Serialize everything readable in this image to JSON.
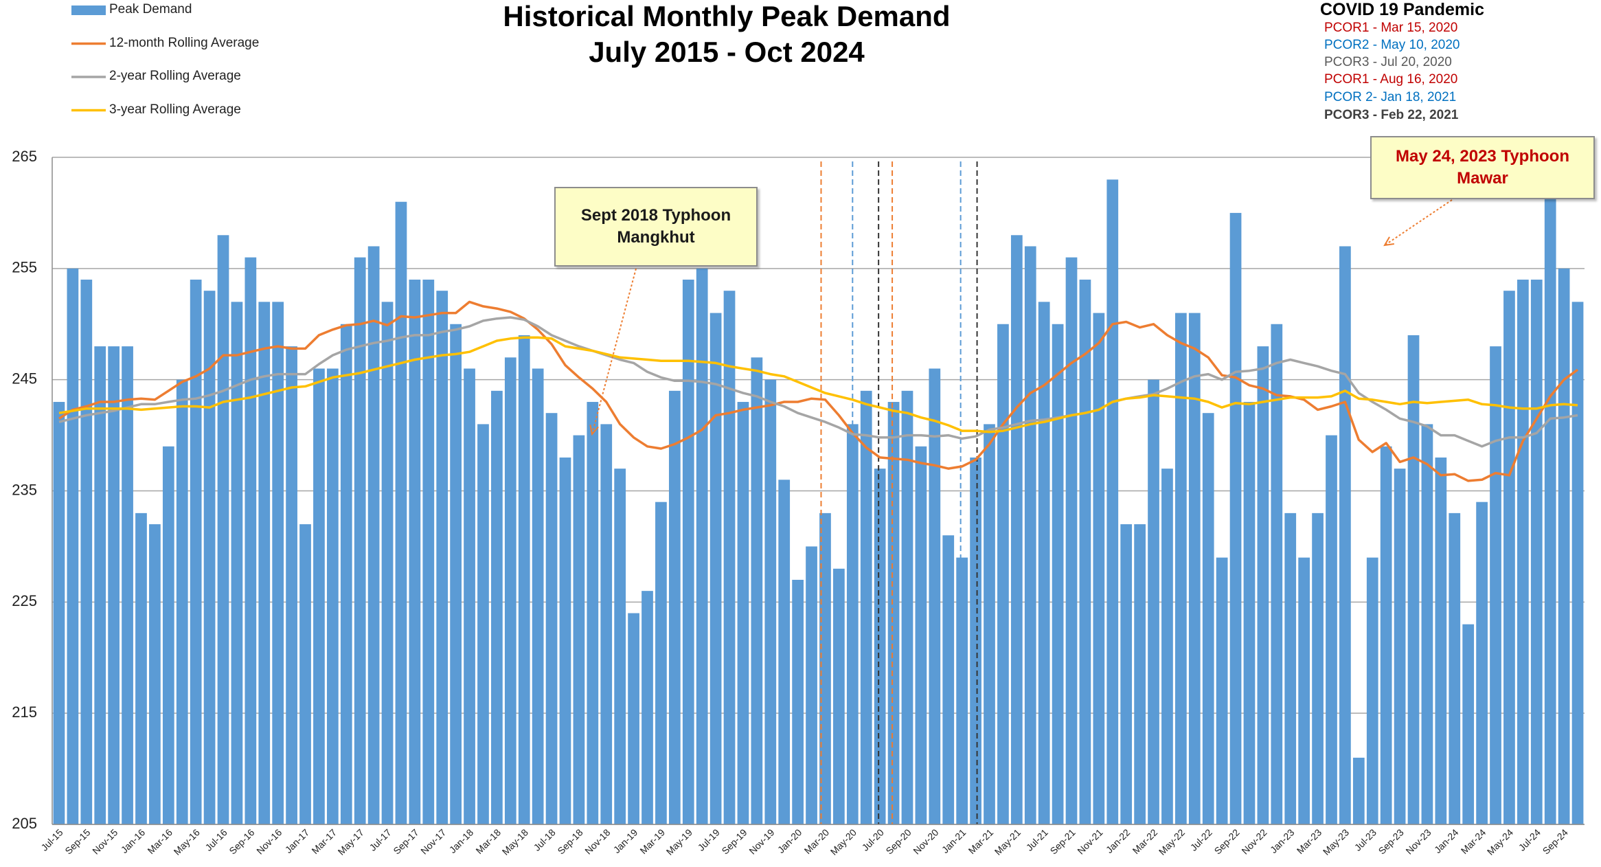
{
  "chart_data": {
    "type": "bar",
    "title": "Historical Monthly Peak Demand",
    "subtitle": "July 2015 - Oct 2024",
    "categories": [
      "Jul-15",
      null,
      "Sep-15",
      null,
      "Nov-15",
      null,
      "Jan-16",
      null,
      "Mar-16",
      null,
      "May-16",
      null,
      "Jul-16",
      null,
      "Sep-16",
      null,
      "Nov-16",
      null,
      "Jan-17",
      null,
      "Mar-17",
      null,
      "May-17",
      null,
      "Jul-17",
      null,
      "Sep-17",
      null,
      "Nov-17",
      null,
      "Jan-18",
      null,
      "Mar-18",
      null,
      "May-18",
      null,
      "Jul-18",
      null,
      "Sep-18",
      null,
      "Nov-18",
      null,
      "Jan-19",
      null,
      "Mar-19",
      null,
      "May-19",
      null,
      "Jul-19",
      null,
      "Sep-19",
      null,
      "Nov-19",
      null,
      "Jan-20",
      null,
      "Mar-20",
      null,
      "May-20",
      null,
      "Jul-20",
      null,
      "Sep-20",
      null,
      "Nov-20",
      null,
      "Jan-21",
      null,
      "Mar-21",
      null,
      "May-21",
      null,
      "Jul-21",
      null,
      "Sep-21",
      null,
      "Nov-21",
      null,
      "Jan-22",
      null,
      "Mar-22",
      null,
      "May-22",
      null,
      "Jul-22",
      null,
      "Sep-22",
      null,
      "Nov-22",
      null,
      "Jan-23",
      null,
      "Mar-23",
      null,
      "May-23",
      null,
      "Jul-23",
      null,
      "Sep-23",
      null,
      "Nov-23",
      null,
      "Jan-24",
      null,
      "Mar-24",
      null,
      "May-24",
      null,
      "Jul-24",
      null,
      "Sep-24",
      null
    ],
    "series": [
      {
        "name": "Peak Demand",
        "type": "bar",
        "color": "#5b9bd5",
        "values": [
          243,
          255,
          254,
          248,
          248,
          248,
          233,
          232,
          239,
          245,
          254,
          253,
          258,
          252,
          256,
          252,
          252,
          248,
          232,
          246,
          246,
          250,
          256,
          257,
          252,
          261,
          254,
          254,
          253,
          250,
          246,
          241,
          244,
          247,
          249,
          246,
          242,
          238,
          240,
          243,
          241,
          237,
          224,
          226,
          234,
          244,
          254,
          255,
          251,
          253,
          243,
          247,
          245,
          236,
          227,
          230,
          233,
          228,
          241,
          244,
          237,
          243,
          244,
          239,
          246,
          231,
          229,
          238,
          241,
          250,
          258,
          257,
          252,
          250,
          256,
          254,
          251,
          263,
          232,
          232,
          245,
          237,
          251,
          251,
          242,
          229,
          260,
          243,
          248,
          250,
          233,
          229,
          233,
          240,
          257,
          211,
          229,
          239,
          237,
          249,
          241,
          238,
          233,
          223,
          234,
          248,
          253,
          254,
          254,
          262,
          255,
          252
        ]
      },
      {
        "name": "12-month Rolling Average",
        "type": "line",
        "color": "#ed7d31",
        "values": [
          241.5,
          242.3,
          242.6,
          243.0,
          243.0,
          243.2,
          243.3,
          243.2,
          244.0,
          244.8,
          245.3,
          246.0,
          247.2,
          247.2,
          247.5,
          247.8,
          248.0,
          247.8,
          247.8,
          249.0,
          249.5,
          249.9,
          250.0,
          250.3,
          249.9,
          250.7,
          250.6,
          250.8,
          251.0,
          251.0,
          252.0,
          251.6,
          251.4,
          251.1,
          250.5,
          249.5,
          248.2,
          246.3,
          245.2,
          244.2,
          243.0,
          241.0,
          239.8,
          239.0,
          238.8,
          239.2,
          239.8,
          240.5,
          241.8,
          242.0,
          242.3,
          242.5,
          242.7,
          243.0,
          243.0,
          243.3,
          243.2,
          241.8,
          240.2,
          238.9,
          238.0,
          237.9,
          237.8,
          237.5,
          237.3,
          237.0,
          237.2,
          237.8,
          239.2,
          241.0,
          242.5,
          243.8,
          244.5,
          245.5,
          246.5,
          247.3,
          248.3,
          250.0,
          250.2,
          249.7,
          250.0,
          249.0,
          248.3,
          247.8,
          247.0,
          245.4,
          245.2,
          244.5,
          244.2,
          243.6,
          243.5,
          243.2,
          242.3,
          242.6,
          243.0,
          239.6,
          238.5,
          239.3,
          237.6,
          238.0,
          237.4,
          236.4,
          236.5,
          235.9,
          236.0,
          236.6,
          236.4,
          239.5,
          241.5,
          243.5,
          245.0,
          245.9
        ]
      },
      {
        "name": "2-year Rolling Average",
        "type": "line",
        "color": "#a5a5a5",
        "values": [
          241.2,
          241.5,
          241.8,
          242.0,
          242.2,
          242.5,
          242.8,
          242.8,
          243.0,
          243.2,
          243.3,
          243.6,
          244.0,
          244.5,
          245.0,
          245.3,
          245.5,
          245.5,
          245.5,
          246.4,
          247.2,
          247.7,
          248.0,
          248.3,
          248.5,
          248.8,
          249.0,
          249.0,
          249.3,
          249.5,
          249.8,
          250.3,
          250.5,
          250.6,
          250.4,
          249.8,
          249.0,
          248.5,
          248.0,
          247.6,
          247.2,
          246.8,
          246.5,
          245.7,
          245.2,
          244.9,
          244.9,
          244.8,
          244.6,
          244.2,
          243.8,
          243.5,
          243.0,
          242.6,
          242.0,
          241.6,
          241.2,
          240.7,
          240.1,
          240.0,
          239.8,
          239.8,
          240.0,
          240.0,
          239.9,
          240.0,
          239.7,
          239.9,
          240.5,
          240.7,
          241.0,
          241.3,
          241.4,
          241.6,
          241.8,
          242.0,
          242.3,
          243.0,
          243.3,
          243.5,
          243.7,
          244.2,
          244.8,
          245.3,
          245.5,
          245.0,
          245.7,
          245.8,
          246.0,
          246.5,
          246.8,
          246.5,
          246.2,
          245.8,
          245.5,
          243.8,
          243.0,
          242.3,
          241.5,
          241.2,
          240.8,
          240.0,
          240.0,
          239.5,
          239.0,
          239.5,
          239.8,
          239.8,
          240.2,
          241.5,
          241.6,
          241.8
        ]
      },
      {
        "name": "3-year Rolling Average",
        "type": "line",
        "color": "#ffc000",
        "values": [
          242.0,
          242.2,
          242.4,
          242.4,
          242.4,
          242.4,
          242.3,
          242.4,
          242.5,
          242.6,
          242.6,
          242.5,
          243.0,
          243.2,
          243.4,
          243.7,
          244.0,
          244.3,
          244.4,
          244.8,
          245.2,
          245.4,
          245.6,
          245.9,
          246.2,
          246.5,
          246.8,
          247.0,
          247.2,
          247.3,
          247.5,
          248.0,
          248.5,
          248.7,
          248.8,
          248.8,
          248.7,
          248.0,
          247.8,
          247.6,
          247.3,
          247.0,
          246.9,
          246.8,
          246.7,
          246.7,
          246.7,
          246.6,
          246.5,
          246.2,
          246.0,
          245.8,
          245.5,
          245.3,
          244.8,
          244.3,
          243.8,
          243.5,
          243.2,
          242.8,
          242.5,
          242.2,
          242.0,
          241.6,
          241.3,
          240.9,
          240.4,
          240.4,
          240.3,
          240.4,
          240.7,
          241.0,
          241.2,
          241.5,
          241.8,
          242.0,
          242.3,
          243.0,
          243.3,
          243.4,
          243.6,
          243.5,
          243.4,
          243.3,
          243.0,
          242.5,
          242.9,
          242.8,
          243.0,
          243.2,
          243.4,
          243.4,
          243.4,
          243.5,
          244.0,
          243.3,
          243.2,
          243.0,
          242.8,
          243.0,
          242.9,
          243.0,
          243.1,
          243.2,
          242.8,
          242.7,
          242.5,
          242.4,
          242.4,
          242.7,
          242.8,
          242.7
        ]
      }
    ],
    "ylim": [
      205,
      265
    ],
    "yticks": [
      205,
      215,
      225,
      235,
      245,
      255,
      265
    ],
    "grid": true,
    "legend": "top-left",
    "annotations": [
      {
        "text": "Sept 2018 Typhoon Mangkhut",
        "color": "#1a1a1a"
      },
      {
        "text": "May 24, 2023 Typhoon Mawar",
        "color": "#c00000"
      }
    ],
    "covid": {
      "title": "COVID 19 Pandemic",
      "items": [
        {
          "text": "PCOR1 - Mar 15, 2020",
          "color": "#c00000"
        },
        {
          "text": "PCOR2 - May 10, 2020",
          "color": "#0070c0"
        },
        {
          "text": "PCOR3 - Jul 20, 2020",
          "color": "#595959"
        },
        {
          "text": "PCOR1 - Aug 16, 2020",
          "color": "#c00000"
        },
        {
          "text": "PCOR 2- Jan 18, 2021",
          "color": "#0070c0"
        },
        {
          "text": "PCOR3 - Feb 22, 2021",
          "color": "#404040",
          "bold": true
        }
      ]
    }
  }
}
